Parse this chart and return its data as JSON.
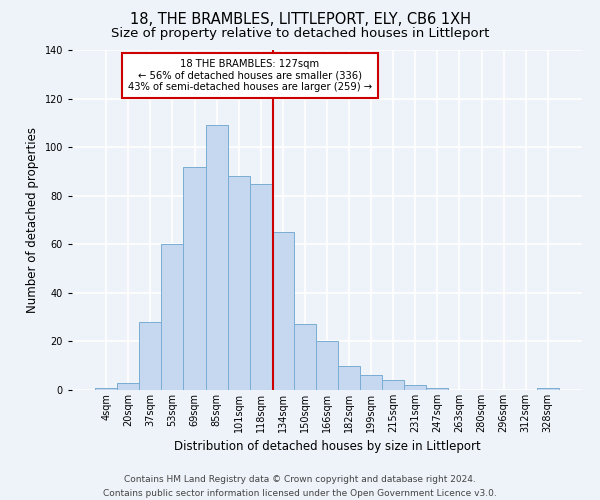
{
  "title": "18, THE BRAMBLES, LITTLEPORT, ELY, CB6 1XH",
  "subtitle": "Size of property relative to detached houses in Littleport",
  "xlabel": "Distribution of detached houses by size in Littleport",
  "ylabel": "Number of detached properties",
  "bar_labels": [
    "4sqm",
    "20sqm",
    "37sqm",
    "53sqm",
    "69sqm",
    "85sqm",
    "101sqm",
    "118sqm",
    "134sqm",
    "150sqm",
    "166sqm",
    "182sqm",
    "199sqm",
    "215sqm",
    "231sqm",
    "247sqm",
    "263sqm",
    "280sqm",
    "296sqm",
    "312sqm",
    "328sqm"
  ],
  "bar_values": [
    1,
    3,
    28,
    60,
    92,
    109,
    88,
    85,
    65,
    27,
    20,
    10,
    6,
    4,
    2,
    1,
    0,
    0,
    0,
    0,
    1
  ],
  "bar_color": "#c5d8f0",
  "bar_edge_color": "#7aadd4",
  "marker_label": "18 THE BRAMBLES: 127sqm",
  "annotation_line1": "← 56% of detached houses are smaller (336)",
  "annotation_line2": "43% of semi-detached houses are larger (259) →",
  "annotation_box_color": "#ffffff",
  "annotation_box_edge": "#cc0000",
  "vline_color": "#cc0000",
  "ylim": [
    0,
    140
  ],
  "yticks": [
    0,
    20,
    40,
    60,
    80,
    100,
    120,
    140
  ],
  "bg_color": "#eef2f9",
  "grid_color": "#ffffff",
  "footer_line1": "Contains HM Land Registry data © Crown copyright and database right 2024.",
  "footer_line2": "Contains public sector information licensed under the Open Government Licence v3.0.",
  "title_fontsize": 10.5,
  "subtitle_fontsize": 9.5,
  "xlabel_fontsize": 8.5,
  "ylabel_fontsize": 8.5,
  "tick_fontsize": 7,
  "footer_fontsize": 6.5
}
